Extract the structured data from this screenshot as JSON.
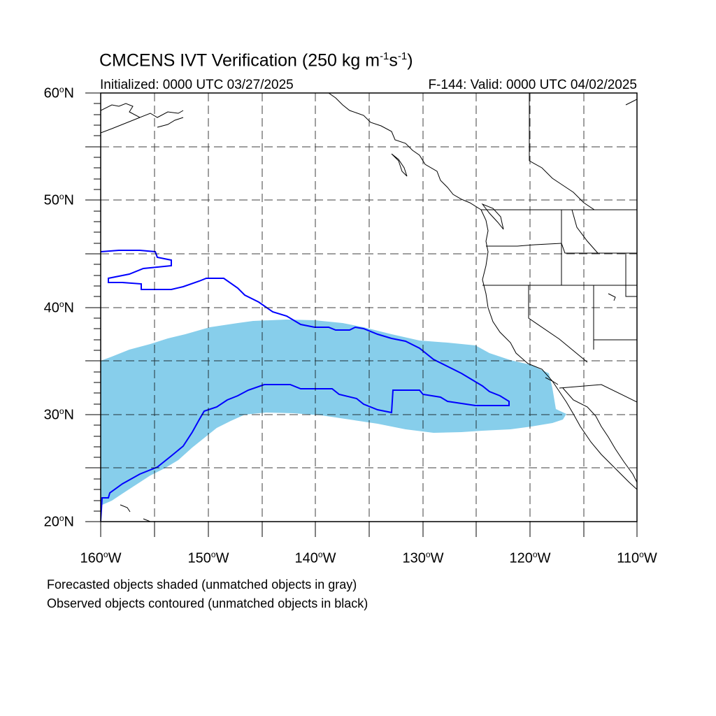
{
  "title": {
    "main": "CMCENS IVT Verification (250 kg m",
    "exp1": "-1",
    "mid": "s",
    "exp2": "-1",
    "close": ")"
  },
  "subtitle": {
    "initialized": "Initialized: 0000 UTC 03/27/2025",
    "valid": "F-144: Valid: 0000 UTC 04/02/2025"
  },
  "axes": {
    "lat_labels": [
      {
        "value": "60",
        "suffix": "N"
      },
      {
        "value": "50",
        "suffix": "N"
      },
      {
        "value": "40",
        "suffix": "N"
      },
      {
        "value": "30",
        "suffix": "N"
      },
      {
        "value": "20",
        "suffix": "N"
      }
    ],
    "lon_labels": [
      {
        "value": "160",
        "suffix": "W"
      },
      {
        "value": "150",
        "suffix": "W"
      },
      {
        "value": "140",
        "suffix": "W"
      },
      {
        "value": "130",
        "suffix": "W"
      },
      {
        "value": "120",
        "suffix": "W"
      },
      {
        "value": "110",
        "suffix": "W"
      }
    ],
    "degree_symbol": "o",
    "lat_range": [
      20,
      60
    ],
    "lon_range": [
      -160,
      -110
    ]
  },
  "legend": {
    "forecast_note": "Forecasted objects shaded (unmatched objects in gray)",
    "observed_note": "Observed objects contoured (unmatched objects in black)"
  },
  "colors": {
    "forecast_fill": "#87ceeb",
    "observed_contour": "#0000ff",
    "coastline": "#000000",
    "grid": "#000000"
  }
}
